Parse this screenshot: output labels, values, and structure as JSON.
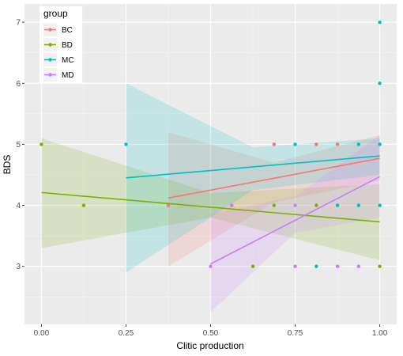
{
  "chart_data": {
    "type": "scatter",
    "xlabel": "Clitic production",
    "ylabel": "BDS",
    "xlim": [
      -0.05,
      1.05
    ],
    "ylim": [
      2.05,
      7.3
    ],
    "x_ticks": [
      0.0,
      0.25,
      0.5,
      0.75,
      1.0
    ],
    "x_tick_labels": [
      "0.00",
      "0.25",
      "0.50",
      "0.75",
      "1.00"
    ],
    "y_ticks": [
      3,
      4,
      5,
      6,
      7
    ],
    "y_tick_labels": [
      "3",
      "4",
      "5",
      "6",
      "7"
    ],
    "grid": true,
    "legend": {
      "title": "group",
      "position": "top-left"
    },
    "series": [
      {
        "name": "BC",
        "color": "#F8766D",
        "points": [
          [
            0.375,
            4.0
          ],
          [
            0.6875,
            5.0
          ],
          [
            0.8125,
            5.0
          ],
          [
            0.875,
            5.0
          ],
          [
            1.0,
            5.0
          ]
        ],
        "fit": {
          "x": [
            0.375,
            1.0
          ],
          "y": [
            4.12,
            4.77
          ]
        },
        "band": {
          "x": [
            0.375,
            0.6875,
            1.0
          ],
          "lower": [
            3.0,
            4.05,
            4.4
          ],
          "upper": [
            5.2,
            4.7,
            5.15
          ]
        }
      },
      {
        "name": "BD",
        "color": "#7CAE00",
        "points": [
          [
            0.0,
            5.0
          ],
          [
            0.125,
            4.0
          ],
          [
            0.625,
            3.0
          ],
          [
            0.6875,
            4.0
          ],
          [
            0.8125,
            4.0
          ],
          [
            1.0,
            3.0
          ]
        ],
        "fit": {
          "x": [
            0.0,
            1.0
          ],
          "y": [
            4.21,
            3.73
          ]
        },
        "band": {
          "x": [
            0.0,
            0.5,
            1.0
          ],
          "lower": [
            3.3,
            3.8,
            3.1
          ],
          "upper": [
            5.1,
            4.2,
            4.35
          ]
        }
      },
      {
        "name": "MC",
        "color": "#00BFC4",
        "points": [
          [
            0.25,
            5.0
          ],
          [
            0.75,
            5.0
          ],
          [
            0.8125,
            3.0
          ],
          [
            0.875,
            4.0
          ],
          [
            0.9375,
            4.0
          ],
          [
            0.9375,
            5.0
          ],
          [
            1.0,
            4.0
          ],
          [
            1.0,
            5.0
          ],
          [
            1.0,
            6.0
          ],
          [
            1.0,
            7.0
          ]
        ],
        "fit": {
          "x": [
            0.25,
            1.0
          ],
          "y": [
            4.45,
            4.81
          ]
        },
        "band": {
          "x": [
            0.25,
            0.625,
            1.0
          ],
          "lower": [
            2.9,
            4.25,
            4.5
          ],
          "upper": [
            6.0,
            4.95,
            5.1
          ]
        }
      },
      {
        "name": "MD",
        "color": "#C77CFF",
        "points": [
          [
            0.5,
            3.0
          ],
          [
            0.5625,
            4.0
          ],
          [
            0.75,
            3.0
          ],
          [
            0.75,
            4.0
          ],
          [
            0.875,
            3.0
          ],
          [
            0.9375,
            3.0
          ]
        ],
        "fit": {
          "x": [
            0.5,
            1.0
          ],
          "y": [
            3.04,
            4.47
          ]
        },
        "band": {
          "x": [
            0.5,
            0.75,
            1.0
          ],
          "lower": [
            2.25,
            3.55,
            3.8
          ],
          "upper": [
            3.85,
            4.15,
            5.15
          ]
        }
      }
    ]
  }
}
